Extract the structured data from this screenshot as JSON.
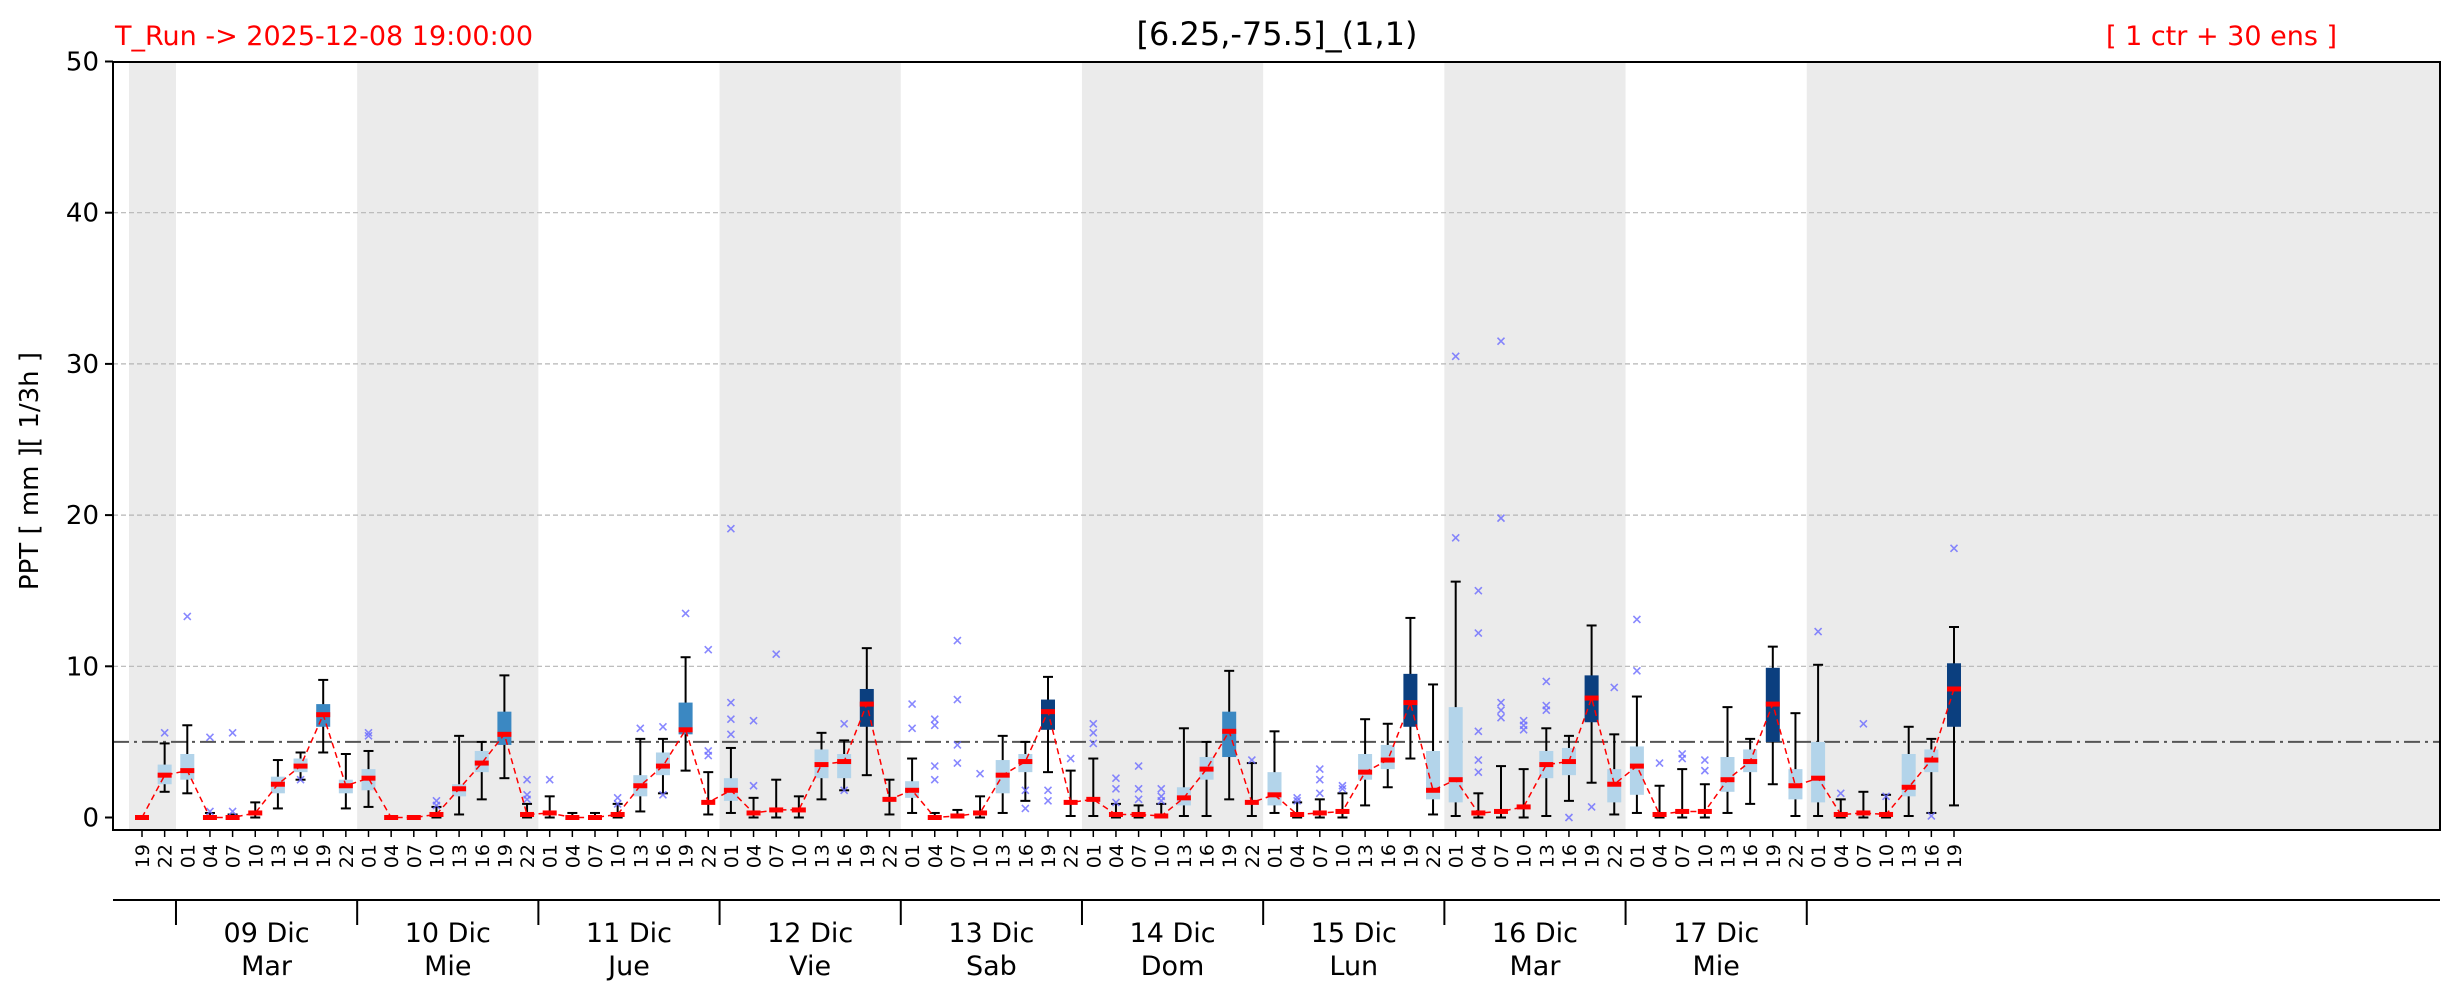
{
  "header": {
    "run_label": "T_Run -> 2025-12-08  19:00:00",
    "title": "[6.25,-75.5]_(1,1)",
    "ensemble_label": "[ 1 ctr + 30 ens ]"
  },
  "chart_data": {
    "type": "boxplot",
    "ylabel": "PPT  [ mm ][ 1/3h ]",
    "ylim": [
      0,
      50
    ],
    "yticks": [
      0,
      10,
      20,
      30,
      40,
      50
    ],
    "grid": true,
    "threshold": 5,
    "x_labels": [
      "19",
      "22",
      "01",
      "04",
      "07",
      "10",
      "13",
      "16",
      "19",
      "22",
      "01",
      "04",
      "07",
      "10",
      "13",
      "16",
      "19",
      "22",
      "01",
      "04",
      "07",
      "10",
      "13",
      "16",
      "19",
      "22",
      "01",
      "04",
      "07",
      "10",
      "13",
      "16",
      "19",
      "22",
      "01",
      "04",
      "07",
      "10",
      "13",
      "16",
      "19",
      "22",
      "01",
      "04",
      "07",
      "10",
      "13",
      "16",
      "19",
      "22",
      "01",
      "04",
      "07",
      "10",
      "13",
      "16",
      "19",
      "22",
      "01",
      "04",
      "07",
      "10",
      "13",
      "16",
      "19",
      "22",
      "01",
      "04",
      "07",
      "10",
      "13",
      "16",
      "19",
      "22",
      "01",
      "04",
      "07",
      "10",
      "13",
      "16",
      "19"
    ],
    "day_groups": [
      {
        "date": "09 Dic",
        "weekday": "Mar"
      },
      {
        "date": "10 Dic",
        "weekday": "Mie"
      },
      {
        "date": "11 Dic",
        "weekday": "Jue"
      },
      {
        "date": "12 Dic",
        "weekday": "Vie"
      },
      {
        "date": "13 Dic",
        "weekday": "Sab"
      },
      {
        "date": "14 Dic",
        "weekday": "Dom"
      },
      {
        "date": "15 Dic",
        "weekday": "Lun"
      },
      {
        "date": "16 Dic",
        "weekday": "Mar"
      },
      {
        "date": "17 Dic",
        "weekday": "Mie"
      }
    ],
    "box_colors": {
      "light": "#b3d4ea",
      "mid": "#3b88c2",
      "dark": "#0b3f7f"
    },
    "median_color": "#ff0000",
    "series": [
      {
        "x": "19",
        "q1": 0.0,
        "q3": 0.0,
        "wlo": 0.0,
        "whi": 0.0,
        "median": 0.0,
        "level": 0,
        "outliers": []
      },
      {
        "x": "22",
        "q1": 2.2,
        "q3": 3.5,
        "wlo": 1.7,
        "whi": 4.9,
        "median": 2.8,
        "level": 1,
        "outliers": [
          5.6
        ]
      },
      {
        "x": "01",
        "q1": 2.5,
        "q3": 4.2,
        "wlo": 1.6,
        "whi": 6.1,
        "median": 3.1,
        "level": 1,
        "outliers": [
          13.3
        ]
      },
      {
        "x": "04",
        "q1": 0.0,
        "q3": 0.1,
        "wlo": 0.0,
        "whi": 0.3,
        "median": 0.0,
        "level": 0,
        "outliers": [
          5.3,
          0.4
        ]
      },
      {
        "x": "07",
        "q1": 0.0,
        "q3": 0.1,
        "wlo": 0.0,
        "whi": 0.2,
        "median": 0.0,
        "level": 0,
        "outliers": [
          5.6,
          0.4
        ]
      },
      {
        "x": "10",
        "q1": 0.1,
        "q3": 0.6,
        "wlo": 0.0,
        "whi": 1.0,
        "median": 0.3,
        "level": 0,
        "outliers": []
      },
      {
        "x": "13",
        "q1": 1.6,
        "q3": 2.7,
        "wlo": 0.6,
        "whi": 3.8,
        "median": 2.2,
        "level": 1,
        "outliers": []
      },
      {
        "x": "16",
        "q1": 3.0,
        "q3": 3.9,
        "wlo": 2.5,
        "whi": 4.3,
        "median": 3.4,
        "level": 1,
        "outliers": [
          2.5
        ]
      },
      {
        "x": "19",
        "q1": 6.0,
        "q3": 7.5,
        "wlo": 4.3,
        "whi": 9.1,
        "median": 6.8,
        "level": 2,
        "outliers": []
      },
      {
        "x": "22",
        "q1": 1.6,
        "q3": 2.5,
        "wlo": 0.6,
        "whi": 4.2,
        "median": 2.1,
        "level": 1,
        "outliers": []
      },
      {
        "x": "01",
        "q1": 1.8,
        "q3": 3.2,
        "wlo": 0.7,
        "whi": 4.4,
        "median": 2.6,
        "level": 1,
        "outliers": [
          5.6,
          5.4
        ]
      },
      {
        "x": "04",
        "q1": 0.0,
        "q3": 0.0,
        "wlo": 0.0,
        "whi": 0.1,
        "median": 0.0,
        "level": 0,
        "outliers": []
      },
      {
        "x": "07",
        "q1": 0.0,
        "q3": 0.0,
        "wlo": 0.0,
        "whi": 0.1,
        "median": 0.0,
        "level": 0,
        "outliers": []
      },
      {
        "x": "10",
        "q1": 0.1,
        "q3": 0.4,
        "wlo": 0.0,
        "whi": 0.7,
        "median": 0.2,
        "level": 0,
        "outliers": [
          1.1,
          0.8
        ]
      },
      {
        "x": "13",
        "q1": 1.4,
        "q3": 2.2,
        "wlo": 0.2,
        "whi": 5.4,
        "median": 1.9,
        "level": 1,
        "outliers": []
      },
      {
        "x": "16",
        "q1": 3.0,
        "q3": 4.4,
        "wlo": 1.2,
        "whi": 5.0,
        "median": 3.6,
        "level": 1,
        "outliers": []
      },
      {
        "x": "19",
        "q1": 4.8,
        "q3": 7.0,
        "wlo": 2.6,
        "whi": 9.4,
        "median": 5.5,
        "level": 2,
        "outliers": []
      },
      {
        "x": "22",
        "q1": 0.1,
        "q3": 0.5,
        "wlo": 0.0,
        "whi": 0.9,
        "median": 0.2,
        "level": 0,
        "outliers": [
          2.5,
          1.5,
          1.2
        ]
      },
      {
        "x": "01",
        "q1": 0.1,
        "q3": 0.6,
        "wlo": 0.0,
        "whi": 1.4,
        "median": 0.3,
        "level": 0,
        "outliers": [
          2.5
        ]
      },
      {
        "x": "04",
        "q1": 0.0,
        "q3": 0.1,
        "wlo": 0.0,
        "whi": 0.3,
        "median": 0.0,
        "level": 0,
        "outliers": []
      },
      {
        "x": "07",
        "q1": 0.0,
        "q3": 0.1,
        "wlo": 0.0,
        "whi": 0.3,
        "median": 0.0,
        "level": 0,
        "outliers": []
      },
      {
        "x": "10",
        "q1": 0.1,
        "q3": 0.5,
        "wlo": 0.0,
        "whi": 0.9,
        "median": 0.2,
        "level": 0,
        "outliers": [
          1.3,
          0.9
        ]
      },
      {
        "x": "13",
        "q1": 1.4,
        "q3": 2.8,
        "wlo": 0.4,
        "whi": 5.2,
        "median": 2.1,
        "level": 1,
        "outliers": [
          5.9
        ]
      },
      {
        "x": "16",
        "q1": 2.8,
        "q3": 4.3,
        "wlo": 1.6,
        "whi": 5.2,
        "median": 3.4,
        "level": 1,
        "outliers": [
          6.0,
          1.5
        ]
      },
      {
        "x": "19",
        "q1": 5.5,
        "q3": 7.6,
        "wlo": 3.1,
        "whi": 10.6,
        "median": 5.8,
        "level": 2,
        "outliers": [
          13.5
        ]
      },
      {
        "x": "22",
        "q1": 0.7,
        "q3": 1.4,
        "wlo": 0.2,
        "whi": 3.0,
        "median": 1.0,
        "level": 0,
        "outliers": [
          11.1,
          4.4,
          4.1
        ]
      },
      {
        "x": "01",
        "q1": 1.1,
        "q3": 2.6,
        "wlo": 0.3,
        "whi": 4.6,
        "median": 1.8,
        "level": 1,
        "outliers": [
          19.1,
          7.6,
          6.5,
          5.5
        ]
      },
      {
        "x": "04",
        "q1": 0.1,
        "q3": 0.6,
        "wlo": 0.0,
        "whi": 1.3,
        "median": 0.3,
        "level": 0,
        "outliers": [
          6.4,
          2.1
        ]
      },
      {
        "x": "07",
        "q1": 0.2,
        "q3": 0.7,
        "wlo": 0.0,
        "whi": 2.5,
        "median": 0.5,
        "level": 0,
        "outliers": [
          10.8
        ]
      },
      {
        "x": "10",
        "q1": 0.2,
        "q3": 0.7,
        "wlo": 0.0,
        "whi": 1.4,
        "median": 0.5,
        "level": 0,
        "outliers": []
      },
      {
        "x": "13",
        "q1": 2.6,
        "q3": 4.5,
        "wlo": 1.2,
        "whi": 5.6,
        "median": 3.5,
        "level": 1,
        "outliers": []
      },
      {
        "x": "16",
        "q1": 2.6,
        "q3": 4.2,
        "wlo": 1.8,
        "whi": 5.1,
        "median": 3.7,
        "level": 1,
        "outliers": [
          6.2,
          1.8
        ]
      },
      {
        "x": "19",
        "q1": 6.0,
        "q3": 8.5,
        "wlo": 2.8,
        "whi": 11.2,
        "median": 7.5,
        "level": 3,
        "outliers": []
      },
      {
        "x": "22",
        "q1": 1.0,
        "q3": 1.8,
        "wlo": 0.2,
        "whi": 2.5,
        "median": 1.2,
        "level": 0,
        "outliers": []
      },
      {
        "x": "01",
        "q1": 1.3,
        "q3": 2.4,
        "wlo": 0.3,
        "whi": 3.9,
        "median": 1.8,
        "level": 1,
        "outliers": [
          7.5,
          5.9
        ]
      },
      {
        "x": "04",
        "q1": 0.0,
        "q3": 0.1,
        "wlo": 0.0,
        "whi": 0.3,
        "median": 0.0,
        "level": 0,
        "outliers": [
          6.5,
          6.1,
          3.4,
          2.5
        ]
      },
      {
        "x": "07",
        "q1": 0.0,
        "q3": 0.2,
        "wlo": 0.0,
        "whi": 0.5,
        "median": 0.1,
        "level": 0,
        "outliers": [
          11.7,
          7.8,
          4.8,
          3.6
        ]
      },
      {
        "x": "10",
        "q1": 0.1,
        "q3": 0.4,
        "wlo": 0.0,
        "whi": 1.4,
        "median": 0.3,
        "level": 0,
        "outliers": [
          2.9
        ]
      },
      {
        "x": "13",
        "q1": 1.6,
        "q3": 3.8,
        "wlo": 0.3,
        "whi": 5.4,
        "median": 2.8,
        "level": 1,
        "outliers": []
      },
      {
        "x": "16",
        "q1": 3.0,
        "q3": 4.2,
        "wlo": 1.1,
        "whi": 5.0,
        "median": 3.7,
        "level": 1,
        "outliers": [
          1.8,
          0.6
        ]
      },
      {
        "x": "19",
        "q1": 5.8,
        "q3": 7.8,
        "wlo": 3.0,
        "whi": 9.3,
        "median": 7.0,
        "level": 3,
        "outliers": [
          1.8,
          1.1
        ]
      },
      {
        "x": "22",
        "q1": 0.7,
        "q3": 1.4,
        "wlo": 0.1,
        "whi": 3.1,
        "median": 1.0,
        "level": 0,
        "outliers": [
          3.9
        ]
      },
      {
        "x": "01",
        "q1": 0.7,
        "q3": 1.6,
        "wlo": 0.1,
        "whi": 3.9,
        "median": 1.2,
        "level": 0,
        "outliers": [
          6.2,
          5.6,
          4.9
        ]
      },
      {
        "x": "04",
        "q1": 0.0,
        "q3": 0.4,
        "wlo": 0.0,
        "whi": 0.9,
        "median": 0.2,
        "level": 0,
        "outliers": [
          2.6,
          1.9,
          1.0
        ]
      },
      {
        "x": "07",
        "q1": 0.0,
        "q3": 0.4,
        "wlo": 0.0,
        "whi": 0.8,
        "median": 0.2,
        "level": 0,
        "outliers": [
          3.4,
          1.9,
          1.2
        ]
      },
      {
        "x": "10",
        "q1": 0.0,
        "q3": 0.4,
        "wlo": 0.0,
        "whi": 0.9,
        "median": 0.1,
        "level": 0,
        "outliers": [
          1.9,
          1.4,
          1.1
        ]
      },
      {
        "x": "13",
        "q1": 0.8,
        "q3": 2.0,
        "wlo": 0.1,
        "whi": 5.9,
        "median": 1.3,
        "level": 1,
        "outliers": []
      },
      {
        "x": "16",
        "q1": 2.5,
        "q3": 4.0,
        "wlo": 0.1,
        "whi": 5.0,
        "median": 3.2,
        "level": 1,
        "outliers": []
      },
      {
        "x": "19",
        "q1": 4.0,
        "q3": 7.0,
        "wlo": 1.2,
        "whi": 9.7,
        "median": 5.7,
        "level": 2,
        "outliers": []
      },
      {
        "x": "22",
        "q1": 0.6,
        "q3": 1.4,
        "wlo": 0.1,
        "whi": 3.6,
        "median": 1.0,
        "level": 0,
        "outliers": [
          3.8
        ]
      },
      {
        "x": "01",
        "q1": 0.8,
        "q3": 3.0,
        "wlo": 0.3,
        "whi": 5.7,
        "median": 1.5,
        "level": 1,
        "outliers": []
      },
      {
        "x": "04",
        "q1": 0.0,
        "q3": 0.4,
        "wlo": 0.0,
        "whi": 1.0,
        "median": 0.2,
        "level": 0,
        "outliers": [
          1.3,
          1.1
        ]
      },
      {
        "x": "07",
        "q1": 0.0,
        "q3": 0.6,
        "wlo": 0.0,
        "whi": 1.2,
        "median": 0.3,
        "level": 0,
        "outliers": [
          3.2,
          2.5,
          1.6
        ]
      },
      {
        "x": "10",
        "q1": 0.1,
        "q3": 0.9,
        "wlo": 0.0,
        "whi": 1.6,
        "median": 0.4,
        "level": 0,
        "outliers": [
          2.1,
          1.9
        ]
      },
      {
        "x": "13",
        "q1": 2.5,
        "q3": 4.2,
        "wlo": 0.8,
        "whi": 6.5,
        "median": 3.0,
        "level": 1,
        "outliers": []
      },
      {
        "x": "16",
        "q1": 3.2,
        "q3": 4.8,
        "wlo": 2.0,
        "whi": 6.2,
        "median": 3.8,
        "level": 1,
        "outliers": []
      },
      {
        "x": "19",
        "q1": 6.0,
        "q3": 9.5,
        "wlo": 3.9,
        "whi": 13.2,
        "median": 7.6,
        "level": 3,
        "outliers": []
      },
      {
        "x": "22",
        "q1": 1.2,
        "q3": 4.4,
        "wlo": 0.2,
        "whi": 8.8,
        "median": 1.8,
        "level": 1,
        "outliers": []
      },
      {
        "x": "01",
        "q1": 1.0,
        "q3": 7.3,
        "wlo": 0.1,
        "whi": 15.6,
        "median": 2.5,
        "level": 1,
        "outliers": [
          30.5,
          18.5
        ]
      },
      {
        "x": "04",
        "q1": 0.1,
        "q3": 0.5,
        "wlo": 0.0,
        "whi": 1.6,
        "median": 0.3,
        "level": 0,
        "outliers": [
          15.0,
          12.2,
          5.7,
          3.8,
          3.0
        ]
      },
      {
        "x": "07",
        "q1": 0.1,
        "q3": 0.7,
        "wlo": 0.0,
        "whi": 3.4,
        "median": 0.4,
        "level": 0,
        "outliers": [
          31.5,
          19.8,
          7.6,
          7.1,
          6.6
        ]
      },
      {
        "x": "10",
        "q1": 0.2,
        "q3": 1.2,
        "wlo": 0.0,
        "whi": 3.2,
        "median": 0.7,
        "level": 0,
        "outliers": [
          6.4,
          6.1,
          5.8
        ]
      },
      {
        "x": "13",
        "q1": 2.6,
        "q3": 4.4,
        "wlo": 0.1,
        "whi": 5.9,
        "median": 3.5,
        "level": 1,
        "outliers": [
          9.0,
          7.4,
          7.1
        ]
      },
      {
        "x": "16",
        "q1": 2.8,
        "q3": 4.6,
        "wlo": 1.1,
        "whi": 5.4,
        "median": 3.7,
        "level": 1,
        "outliers": [
          0.0
        ]
      },
      {
        "x": "19",
        "q1": 6.3,
        "q3": 9.4,
        "wlo": 2.3,
        "whi": 12.7,
        "median": 7.9,
        "level": 3,
        "outliers": [
          0.7
        ]
      },
      {
        "x": "22",
        "q1": 1.0,
        "q3": 3.2,
        "wlo": 0.2,
        "whi": 5.5,
        "median": 2.2,
        "level": 1,
        "outliers": [
          8.6
        ]
      },
      {
        "x": "01",
        "q1": 1.5,
        "q3": 4.7,
        "wlo": 0.3,
        "whi": 8.0,
        "median": 3.4,
        "level": 1,
        "outliers": [
          13.1,
          9.7
        ]
      },
      {
        "x": "04",
        "q1": 0.0,
        "q3": 0.5,
        "wlo": 0.0,
        "whi": 2.1,
        "median": 0.2,
        "level": 0,
        "outliers": [
          3.6
        ]
      },
      {
        "x": "07",
        "q1": 0.1,
        "q3": 0.8,
        "wlo": 0.0,
        "whi": 3.2,
        "median": 0.4,
        "level": 0,
        "outliers": [
          4.2,
          3.9
        ]
      },
      {
        "x": "10",
        "q1": 0.1,
        "q3": 0.7,
        "wlo": 0.0,
        "whi": 2.2,
        "median": 0.4,
        "level": 0,
        "outliers": [
          3.8,
          3.1
        ]
      },
      {
        "x": "13",
        "q1": 1.7,
        "q3": 4.0,
        "wlo": 0.3,
        "whi": 7.3,
        "median": 2.5,
        "level": 1,
        "outliers": []
      },
      {
        "x": "16",
        "q1": 3.0,
        "q3": 4.5,
        "wlo": 0.9,
        "whi": 5.2,
        "median": 3.7,
        "level": 1,
        "outliers": []
      },
      {
        "x": "19",
        "q1": 5.0,
        "q3": 9.9,
        "wlo": 2.2,
        "whi": 11.3,
        "median": 7.5,
        "level": 3,
        "outliers": []
      },
      {
        "x": "22",
        "q1": 1.2,
        "q3": 3.2,
        "wlo": 0.1,
        "whi": 6.9,
        "median": 2.1,
        "level": 1,
        "outliers": []
      },
      {
        "x": "01",
        "q1": 1.0,
        "q3": 5.0,
        "wlo": 0.1,
        "whi": 10.1,
        "median": 2.6,
        "level": 1,
        "outliers": [
          12.3
        ]
      },
      {
        "x": "04",
        "q1": 0.0,
        "q3": 0.5,
        "wlo": 0.0,
        "whi": 1.2,
        "median": 0.2,
        "level": 0,
        "outliers": [
          1.6
        ]
      },
      {
        "x": "07",
        "q1": 0.0,
        "q3": 0.5,
        "wlo": 0.0,
        "whi": 1.7,
        "median": 0.3,
        "level": 0,
        "outliers": [
          6.2
        ]
      },
      {
        "x": "10",
        "q1": 0.0,
        "q3": 0.6,
        "wlo": 0.0,
        "whi": 1.5,
        "median": 0.2,
        "level": 0,
        "outliers": [
          1.4
        ]
      },
      {
        "x": "13",
        "q1": 1.4,
        "q3": 4.2,
        "wlo": 0.1,
        "whi": 6.0,
        "median": 2.0,
        "level": 1,
        "outliers": []
      },
      {
        "x": "16",
        "q1": 3.0,
        "q3": 4.5,
        "wlo": 0.3,
        "whi": 5.2,
        "median": 3.8,
        "level": 1,
        "outliers": [
          0.1
        ]
      },
      {
        "x": "19",
        "q1": 6.0,
        "q3": 10.2,
        "wlo": 0.8,
        "whi": 12.6,
        "median": 8.5,
        "level": 3,
        "outliers": [
          17.8
        ]
      }
    ]
  }
}
